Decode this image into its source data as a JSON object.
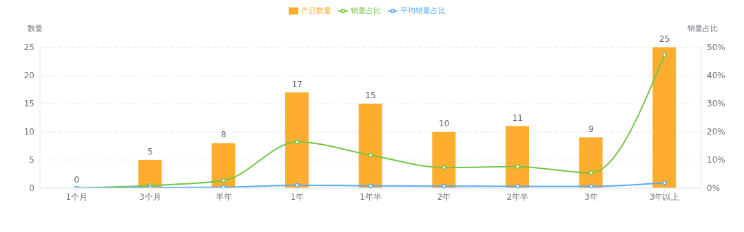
{
  "chart_data": {
    "type": "bar",
    "xlabel": null,
    "ylabel": "数量",
    "y2label": "销量占比",
    "categories": [
      "1个月",
      "3个月",
      "半年",
      "1年",
      "1年半",
      "2年",
      "2年半",
      "3年",
      "3年以上"
    ],
    "series": [
      {
        "name": "产品数量",
        "type": "bar",
        "color": "#ffad2f",
        "values": [
          0,
          5,
          8,
          17,
          15,
          10,
          11,
          9,
          25
        ],
        "value_labels": [
          "0",
          "5",
          "8",
          "17",
          "15",
          "10",
          "11",
          "9",
          "25"
        ]
      },
      {
        "name": "销量占比",
        "type": "line",
        "axis": "y2",
        "color": "#73c646",
        "values": [
          0,
          0.9,
          2.7,
          16.4,
          11.7,
          7.3,
          7.6,
          5.4,
          47.4
        ]
      },
      {
        "name": "平均销量占比",
        "type": "line",
        "axis": "y2",
        "color": "#5aabf5",
        "values": [
          0,
          0.2,
          0.3,
          1.0,
          0.8,
          0.7,
          0.6,
          0.6,
          1.9
        ]
      }
    ],
    "ylim": [
      0,
      25
    ],
    "yticks": [
      0,
      5,
      10,
      15,
      20,
      25
    ],
    "y2lim": [
      0,
      50
    ],
    "y2ticks": [
      {
        "value": 0,
        "label": "0%"
      },
      {
        "value": 10,
        "label": "10%"
      },
      {
        "value": 20,
        "label": "20%"
      },
      {
        "value": 30,
        "label": "30%"
      },
      {
        "value": 40,
        "label": "40%"
      },
      {
        "value": 50,
        "label": "50%"
      }
    ],
    "grid": "y",
    "legend": "top",
    "marker": "circle",
    "line_style": "solid"
  }
}
